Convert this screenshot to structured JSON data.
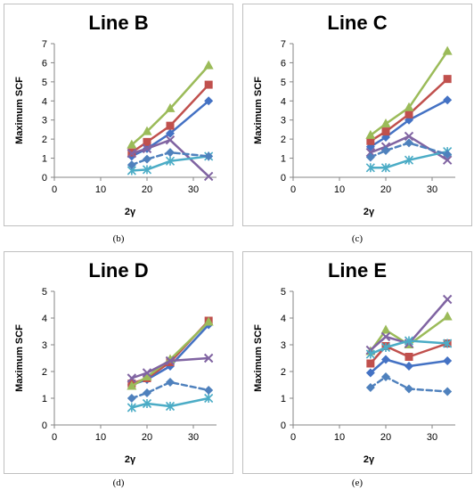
{
  "chart_data": [
    {
      "type": "line",
      "title": "Line B",
      "caption": "(b)",
      "xlabel": "2γ",
      "ylabel": "Maximum SCF",
      "xlim": [
        0,
        35
      ],
      "ylim": [
        0,
        7
      ],
      "xticks": [
        "0",
        "10",
        "20",
        "30"
      ],
      "yticks": [
        "0",
        "1",
        "2",
        "3",
        "4",
        "5",
        "6",
        "7"
      ],
      "grid": false,
      "x": [
        16.7,
        20,
        25,
        33.3
      ],
      "series": [
        {
          "color": "#4472c4",
          "marker": "diamond",
          "dash": false,
          "values": [
            1.1,
            1.5,
            2.3,
            4.0
          ]
        },
        {
          "color": "#c0504d",
          "marker": "square",
          "dash": false,
          "values": [
            1.3,
            1.85,
            2.7,
            4.85
          ]
        },
        {
          "color": "#9bbb59",
          "marker": "triangle",
          "dash": false,
          "values": [
            1.7,
            2.4,
            3.6,
            5.85
          ]
        },
        {
          "color": "#8064a2",
          "marker": "x",
          "dash": false,
          "values": [
            1.25,
            1.5,
            1.95,
            0.05
          ]
        },
        {
          "color": "#4bacc6",
          "marker": "asterisk",
          "dash": false,
          "values": [
            0.35,
            0.4,
            0.85,
            1.1
          ]
        },
        {
          "color": "#4f81bd",
          "marker": "diamond",
          "dash": true,
          "values": [
            0.65,
            0.95,
            1.3,
            1.1
          ]
        }
      ]
    },
    {
      "type": "line",
      "title": "Line C",
      "caption": "(c)",
      "xlabel": "2γ",
      "ylabel": "Maximum SCF",
      "xlim": [
        0,
        35
      ],
      "ylim": [
        0,
        7
      ],
      "xticks": [
        "0",
        "10",
        "20",
        "30"
      ],
      "yticks": [
        "0",
        "1",
        "2",
        "3",
        "4",
        "5",
        "6",
        "7"
      ],
      "grid": false,
      "x": [
        16.7,
        20,
        25,
        33.3
      ],
      "series": [
        {
          "color": "#4472c4",
          "marker": "diamond",
          "dash": false,
          "values": [
            1.6,
            2.1,
            3.0,
            4.05
          ]
        },
        {
          "color": "#c0504d",
          "marker": "square",
          "dash": false,
          "values": [
            1.9,
            2.4,
            3.3,
            5.15
          ]
        },
        {
          "color": "#9bbb59",
          "marker": "triangle",
          "dash": false,
          "values": [
            2.2,
            2.8,
            3.65,
            6.6
          ]
        },
        {
          "color": "#8064a2",
          "marker": "x",
          "dash": false,
          "values": [
            1.3,
            1.6,
            2.15,
            0.9
          ]
        },
        {
          "color": "#4bacc6",
          "marker": "asterisk",
          "dash": false,
          "values": [
            0.5,
            0.5,
            0.9,
            1.35
          ]
        },
        {
          "color": "#4f81bd",
          "marker": "diamond",
          "dash": true,
          "values": [
            1.05,
            1.4,
            1.8,
            1.2
          ]
        }
      ]
    },
    {
      "type": "line",
      "title": "Line D",
      "caption": "(d)",
      "xlabel": "2γ",
      "ylabel": "Maximum SCF",
      "xlim": [
        0,
        35
      ],
      "ylim": [
        0,
        5
      ],
      "xticks": [
        "0",
        "10",
        "20",
        "30"
      ],
      "yticks": [
        "0",
        "1",
        "2",
        "3",
        "4",
        "5"
      ],
      "grid": false,
      "x": [
        16.7,
        20,
        25,
        33.3
      ],
      "series": [
        {
          "color": "#4472c4",
          "marker": "diamond",
          "dash": false,
          "values": [
            1.5,
            1.7,
            2.2,
            3.75
          ]
        },
        {
          "color": "#c0504d",
          "marker": "square",
          "dash": false,
          "values": [
            1.55,
            1.75,
            2.35,
            3.9
          ]
        },
        {
          "color": "#9bbb59",
          "marker": "triangle",
          "dash": false,
          "values": [
            1.45,
            1.8,
            2.45,
            3.85
          ]
        },
        {
          "color": "#8064a2",
          "marker": "x",
          "dash": false,
          "values": [
            1.75,
            1.95,
            2.4,
            2.5
          ]
        },
        {
          "color": "#4bacc6",
          "marker": "asterisk",
          "dash": false,
          "values": [
            0.65,
            0.8,
            0.7,
            1.0
          ]
        },
        {
          "color": "#4f81bd",
          "marker": "diamond",
          "dash": true,
          "values": [
            1.0,
            1.2,
            1.6,
            1.3
          ]
        }
      ]
    },
    {
      "type": "line",
      "title": "Line E",
      "caption": "(e)",
      "xlabel": "2γ",
      "ylabel": "Maximum SCF",
      "xlim": [
        0,
        35
      ],
      "ylim": [
        0,
        5
      ],
      "xticks": [
        "0",
        "10",
        "20",
        "30"
      ],
      "yticks": [
        "0",
        "1",
        "2",
        "3",
        "4",
        "5"
      ],
      "grid": false,
      "x": [
        16.7,
        20,
        25,
        33.3
      ],
      "series": [
        {
          "color": "#4472c4",
          "marker": "diamond",
          "dash": false,
          "values": [
            1.95,
            2.45,
            2.2,
            2.4
          ]
        },
        {
          "color": "#c0504d",
          "marker": "square",
          "dash": false,
          "values": [
            2.3,
            2.95,
            2.55,
            3.05
          ]
        },
        {
          "color": "#9bbb59",
          "marker": "triangle",
          "dash": false,
          "values": [
            2.75,
            3.55,
            3.0,
            4.05
          ]
        },
        {
          "color": "#8064a2",
          "marker": "x",
          "dash": false,
          "values": [
            2.8,
            3.3,
            3.05,
            4.7
          ]
        },
        {
          "color": "#4bacc6",
          "marker": "asterisk",
          "dash": false,
          "values": [
            2.65,
            2.9,
            3.15,
            3.05
          ]
        },
        {
          "color": "#4f81bd",
          "marker": "diamond",
          "dash": true,
          "values": [
            1.4,
            1.8,
            1.35,
            1.25
          ]
        }
      ]
    }
  ]
}
